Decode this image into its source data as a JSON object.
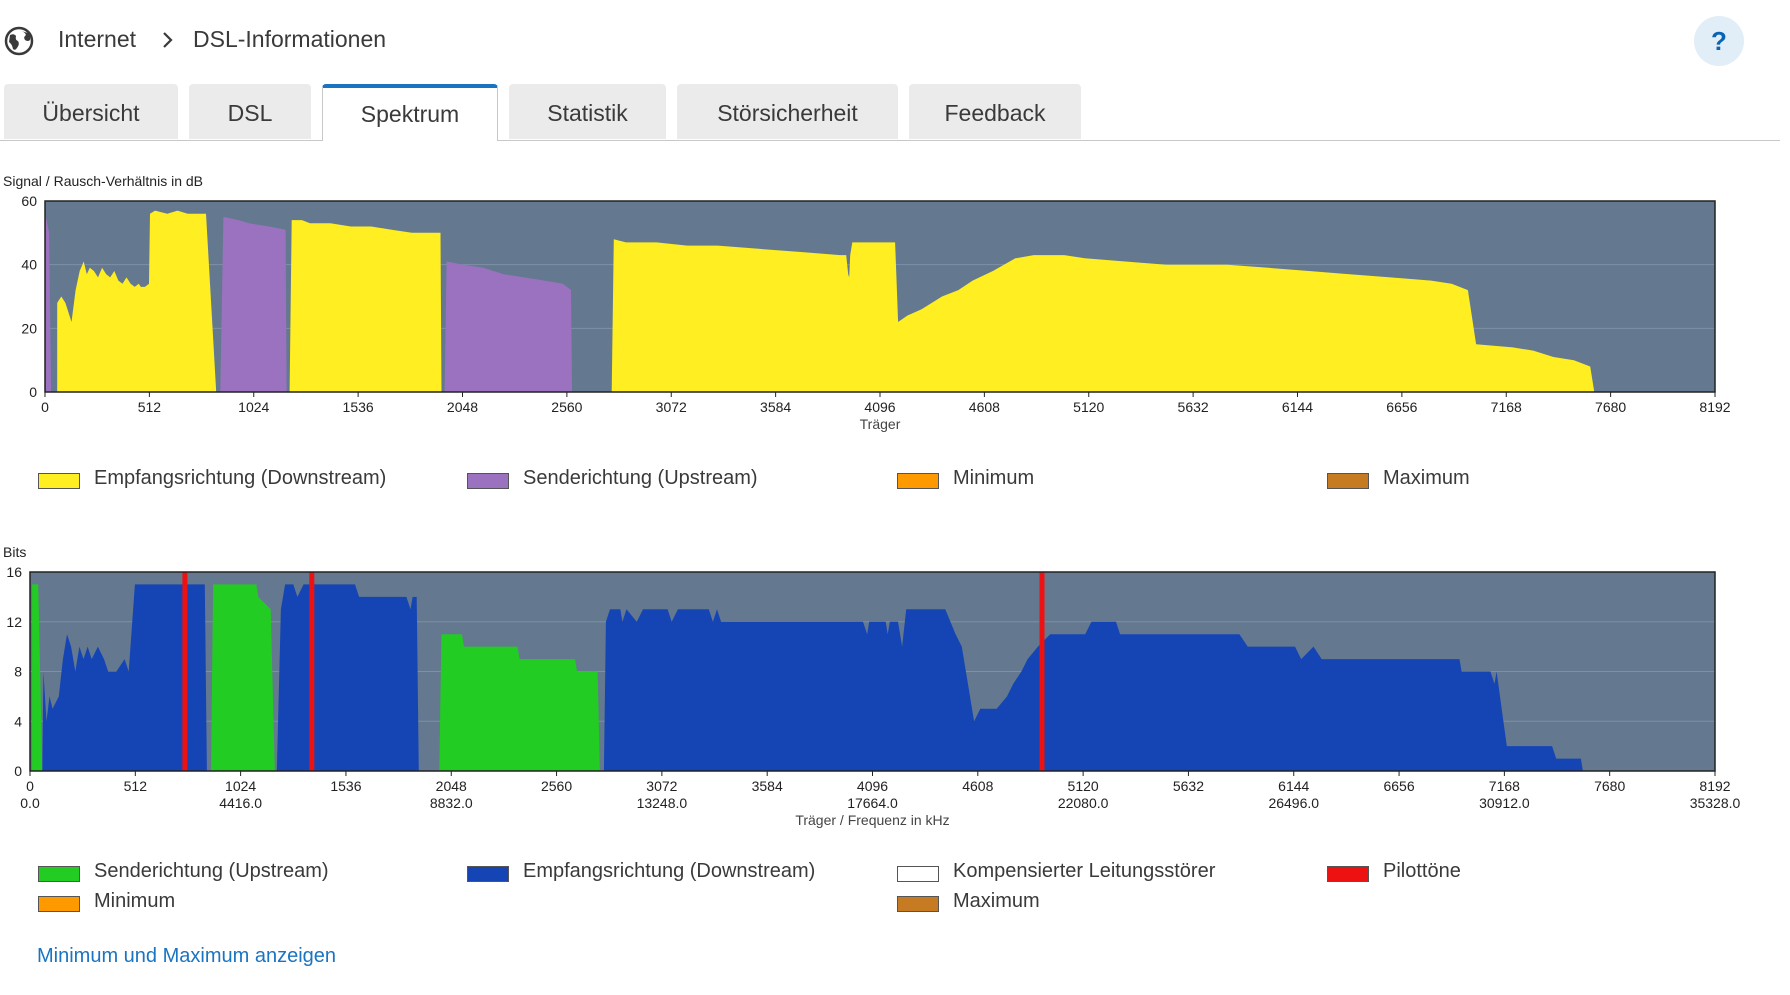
{
  "breadcrumb": {
    "section": "Internet",
    "page": "DSL-Informationen"
  },
  "help_label": "?",
  "tabs": [
    {
      "label": "Übersicht",
      "active": false
    },
    {
      "label": "DSL",
      "active": false
    },
    {
      "label": "Spektrum",
      "active": true
    },
    {
      "label": "Statistik",
      "active": false
    },
    {
      "label": "Störsicherheit",
      "active": false
    },
    {
      "label": "Feedback",
      "active": false
    }
  ],
  "colors": {
    "plot_bg": "#64798f",
    "downstream_snr": "#ffee22",
    "upstream_snr": "#9b72bf",
    "upstream_bits": "#22cc22",
    "downstream_bits": "#1545b5",
    "pilot": "#ee1111",
    "minimum": "#ff9900",
    "maximum": "#c67b22",
    "compensated": "#ffffff"
  },
  "chart_data": [
    {
      "type": "area",
      "title": "Signal / Rausch-Verhältnis in dB",
      "xlabel": "Träger",
      "ylabel": "Signal / Rausch-Verhältnis in dB",
      "xlim": [
        0,
        8192
      ],
      "ylim": [
        0,
        60
      ],
      "xticks": [
        0,
        512,
        1024,
        1536,
        2048,
        2560,
        3072,
        3584,
        4096,
        4608,
        5120,
        5632,
        6144,
        6656,
        7168,
        7680,
        8192
      ],
      "yticks": [
        0,
        20,
        40,
        60
      ],
      "grid": true,
      "series": [
        {
          "name": "Empfangsrichtung (Downstream)",
          "color_key": "downstream_snr",
          "points": [
            [
              60,
              0
            ],
            [
              60,
              28
            ],
            [
              80,
              30
            ],
            [
              100,
              28
            ],
            [
              130,
              22
            ],
            [
              150,
              32
            ],
            [
              170,
              38
            ],
            [
              190,
              41
            ],
            [
              205,
              37
            ],
            [
              220,
              39
            ],
            [
              240,
              38
            ],
            [
              260,
              36
            ],
            [
              280,
              39
            ],
            [
              300,
              37
            ],
            [
              320,
              36
            ],
            [
              340,
              38
            ],
            [
              360,
              35
            ],
            [
              380,
              34
            ],
            [
              400,
              36
            ],
            [
              420,
              34
            ],
            [
              440,
              33
            ],
            [
              460,
              34
            ],
            [
              470,
              33
            ],
            [
              490,
              33
            ],
            [
              510,
              34
            ],
            [
              515,
              56
            ],
            [
              540,
              57
            ],
            [
              600,
              56
            ],
            [
              650,
              57
            ],
            [
              700,
              56
            ],
            [
              750,
              56
            ],
            [
              790,
              56
            ],
            [
              840,
              0
            ],
            [
              1200,
              0
            ],
            [
              1210,
              54
            ],
            [
              1260,
              54
            ],
            [
              1300,
              53
            ],
            [
              1400,
              53
            ],
            [
              1500,
              52
            ],
            [
              1600,
              52
            ],
            [
              1700,
              51
            ],
            [
              1800,
              50
            ],
            [
              1900,
              50
            ],
            [
              1940,
              50
            ],
            [
              1945,
              0
            ],
            [
              2780,
              0
            ],
            [
              2790,
              48
            ],
            [
              2850,
              47
            ],
            [
              3000,
              47
            ],
            [
              3150,
              46
            ],
            [
              3300,
              46
            ],
            [
              3500,
              45
            ],
            [
              3700,
              44
            ],
            [
              3900,
              43
            ],
            [
              3930,
              43
            ],
            [
              3940,
              37
            ],
            [
              3945,
              36
            ],
            [
              3950,
              43
            ],
            [
              3960,
              47
            ],
            [
              4100,
              47
            ],
            [
              4170,
              47
            ],
            [
              4185,
              22
            ],
            [
              4230,
              24
            ],
            [
              4300,
              26
            ],
            [
              4400,
              30
            ],
            [
              4480,
              32
            ],
            [
              4550,
              35
            ],
            [
              4650,
              38
            ],
            [
              4760,
              42
            ],
            [
              4850,
              43
            ],
            [
              5000,
              43
            ],
            [
              5100,
              42
            ],
            [
              5300,
              41
            ],
            [
              5500,
              40
            ],
            [
              5800,
              40
            ],
            [
              6000,
              39
            ],
            [
              6200,
              38
            ],
            [
              6400,
              37
            ],
            [
              6600,
              36
            ],
            [
              6800,
              35
            ],
            [
              6900,
              34
            ],
            [
              6980,
              32
            ],
            [
              7020,
              15
            ],
            [
              7200,
              14
            ],
            [
              7300,
              13
            ],
            [
              7400,
              11
            ],
            [
              7500,
              10
            ],
            [
              7580,
              8
            ],
            [
              7600,
              0
            ]
          ]
        },
        {
          "name": "Senderichtung (Upstream)",
          "color_key": "upstream_snr",
          "points": [
            [
              5,
              0
            ],
            [
              5,
              55
            ],
            [
              20,
              50
            ],
            [
              30,
              0
            ],
            [
              860,
              0
            ],
            [
              875,
              55
            ],
            [
              950,
              54
            ],
            [
              1000,
              53
            ],
            [
              1100,
              52
            ],
            [
              1180,
              51
            ],
            [
              1185,
              0
            ],
            [
              1960,
              0
            ],
            [
              1970,
              41
            ],
            [
              2050,
              40
            ],
            [
              2150,
              39
            ],
            [
              2250,
              37
            ],
            [
              2350,
              36
            ],
            [
              2450,
              35
            ],
            [
              2540,
              34
            ],
            [
              2560,
              33
            ],
            [
              2580,
              32
            ],
            [
              2585,
              0
            ]
          ]
        },
        {
          "name": "Minimum",
          "color_key": "minimum",
          "points": []
        },
        {
          "name": "Maximum",
          "color_key": "maximum",
          "points": []
        }
      ]
    },
    {
      "type": "area",
      "title": "Bits",
      "xlabel": "Träger / Frequenz in kHz",
      "ylabel": "Bits",
      "xlim": [
        0,
        8192
      ],
      "ylim": [
        0,
        16
      ],
      "xticks": [
        0,
        512,
        1024,
        1536,
        2048,
        2560,
        3072,
        3584,
        4096,
        4608,
        5120,
        5632,
        6144,
        6656,
        7168,
        7680,
        8192
      ],
      "xticks_khz": {
        "0": "0.0",
        "1024": "4416.0",
        "2048": "8832.0",
        "3072": "13248.0",
        "4096": "17664.0",
        "5120": "22080.0",
        "6144": "26496.0",
        "7168": "30912.0",
        "8192": "35328.0"
      },
      "yticks": [
        0,
        4,
        8,
        12,
        16
      ],
      "grid": true,
      "series": [
        {
          "name": "Senderichtung (Upstream)",
          "color_key": "upstream_bits",
          "points": [
            [
              10,
              0
            ],
            [
              10,
              15
            ],
            [
              40,
              15
            ],
            [
              60,
              0
            ],
            [
              880,
              0
            ],
            [
              890,
              15
            ],
            [
              1100,
              15
            ],
            [
              1110,
              14
            ],
            [
              1170,
              13
            ],
            [
              1190,
              0
            ],
            [
              1990,
              0
            ],
            [
              2000,
              11
            ],
            [
              2100,
              11
            ],
            [
              2110,
              10
            ],
            [
              2370,
              10
            ],
            [
              2380,
              9
            ],
            [
              2650,
              9
            ],
            [
              2660,
              8
            ],
            [
              2760,
              8
            ],
            [
              2770,
              0
            ]
          ]
        },
        {
          "name": "Empfangsrichtung (Downstream)",
          "color_key": "downstream_bits",
          "points": [
            [
              60,
              0
            ],
            [
              65,
              8
            ],
            [
              80,
              4
            ],
            [
              95,
              6
            ],
            [
              110,
              5
            ],
            [
              140,
              6
            ],
            [
              160,
              9
            ],
            [
              180,
              11
            ],
            [
              200,
              10
            ],
            [
              220,
              8
            ],
            [
              240,
              10
            ],
            [
              260,
              9
            ],
            [
              280,
              10
            ],
            [
              300,
              9
            ],
            [
              330,
              10
            ],
            [
              360,
              9
            ],
            [
              380,
              8
            ],
            [
              420,
              8
            ],
            [
              460,
              9
            ],
            [
              480,
              8
            ],
            [
              510,
              15
            ],
            [
              790,
              15
            ],
            [
              850,
              15
            ],
            [
              860,
              0
            ],
            [
              1200,
              0
            ],
            [
              1220,
              13
            ],
            [
              1240,
              15
            ],
            [
              1280,
              15
            ],
            [
              1300,
              14
            ],
            [
              1330,
              15
            ],
            [
              1580,
              15
            ],
            [
              1600,
              14
            ],
            [
              1750,
              14
            ],
            [
              1830,
              14
            ],
            [
              1850,
              13
            ],
            [
              1860,
              14
            ],
            [
              1880,
              14
            ],
            [
              1890,
              0
            ],
            [
              2790,
              0
            ],
            [
              2800,
              12
            ],
            [
              2820,
              13
            ],
            [
              2870,
              13
            ],
            [
              2880,
              12
            ],
            [
              2900,
              13
            ],
            [
              2950,
              12
            ],
            [
              2980,
              13
            ],
            [
              3100,
              13
            ],
            [
              3120,
              12
            ],
            [
              3150,
              13
            ],
            [
              3300,
              13
            ],
            [
              3320,
              12
            ],
            [
              3340,
              13
            ],
            [
              3360,
              12
            ],
            [
              4050,
              12
            ],
            [
              4070,
              11
            ],
            [
              4080,
              12
            ],
            [
              4160,
              12
            ],
            [
              4170,
              11
            ],
            [
              4180,
              12
            ],
            [
              4220,
              12
            ],
            [
              4230,
              11
            ],
            [
              4240,
              10
            ],
            [
              4260,
              13
            ],
            [
              4450,
              13
            ],
            [
              4500,
              11
            ],
            [
              4530,
              10
            ],
            [
              4590,
              4
            ],
            [
              4620,
              5
            ],
            [
              4700,
              5
            ],
            [
              4750,
              6
            ],
            [
              4780,
              7
            ],
            [
              4820,
              8
            ],
            [
              4850,
              9
            ],
            [
              4900,
              10
            ],
            [
              4960,
              11
            ],
            [
              5130,
              11
            ],
            [
              5160,
              12
            ],
            [
              5280,
              12
            ],
            [
              5300,
              11
            ],
            [
              5880,
              11
            ],
            [
              5920,
              10
            ],
            [
              6080,
              10
            ],
            [
              6150,
              10
            ],
            [
              6180,
              9
            ],
            [
              6240,
              10
            ],
            [
              6280,
              9
            ],
            [
              6950,
              9
            ],
            [
              6960,
              8
            ],
            [
              7100,
              8
            ],
            [
              7120,
              7
            ],
            [
              7130,
              8
            ],
            [
              7180,
              2
            ],
            [
              7400,
              2
            ],
            [
              7420,
              1
            ],
            [
              7540,
              1
            ],
            [
              7550,
              0
            ]
          ]
        },
        {
          "name": "Kompensierter Leitungsstörer",
          "color_key": "compensated",
          "points": []
        },
        {
          "name": "Pilottöne",
          "color_key": "pilot",
          "carriers": [
            753,
            1370,
            4920
          ]
        },
        {
          "name": "Minimum",
          "color_key": "minimum",
          "points": []
        },
        {
          "name": "Maximum",
          "color_key": "maximum",
          "points": []
        }
      ]
    }
  ],
  "snr_legend": [
    {
      "label": "Empfangsrichtung (Downstream)",
      "color_key": "downstream_snr"
    },
    {
      "label": "Senderichtung (Upstream)",
      "color_key": "upstream_snr"
    },
    {
      "label": "Minimum",
      "color_key": "minimum"
    },
    {
      "label": "Maximum",
      "color_key": "maximum"
    }
  ],
  "bits_legend": [
    {
      "label": "Senderichtung (Upstream)",
      "color_key": "upstream_bits"
    },
    {
      "label": "Empfangsrichtung (Downstream)",
      "color_key": "downstream_bits"
    },
    {
      "label": "Kompensierter Leitungsstörer",
      "color_key": "compensated"
    },
    {
      "label": "Pilottöne",
      "color_key": "pilot"
    },
    {
      "label": "Minimum",
      "color_key": "minimum"
    },
    {
      "label": "Maximum",
      "color_key": "maximum"
    }
  ],
  "toggle_link": "Minimum und Maximum anzeigen"
}
